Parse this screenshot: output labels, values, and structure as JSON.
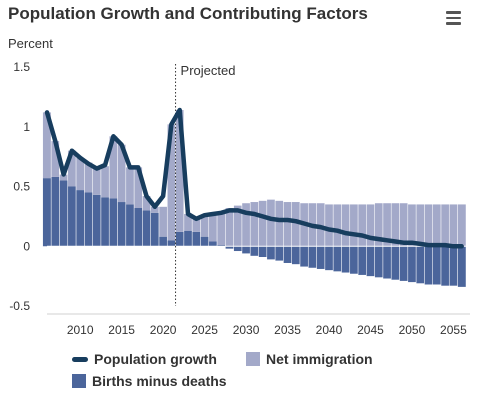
{
  "chart_data": {
    "type": "bar+line",
    "title": "Population Growth and Contributing Factors",
    "ylabel": "Percent",
    "ylim": [
      -0.5,
      1.5
    ],
    "yticks": [
      -0.5,
      0,
      0.5,
      1,
      1.5
    ],
    "ytick_labels": [
      "-0.5",
      "0",
      "0.5",
      "1",
      "1.5"
    ],
    "xlim": [
      2006,
      2057
    ],
    "xticks": [
      2010,
      2015,
      2020,
      2025,
      2030,
      2035,
      2040,
      2045,
      2050,
      2055
    ],
    "xtick_labels": [
      "2010",
      "2015",
      "2020",
      "2025",
      "2030",
      "2035",
      "2040",
      "2045",
      "2050",
      "2055"
    ],
    "projected_start": 2021.5,
    "projected_label": "Projected",
    "years": [
      2006,
      2007,
      2008,
      2009,
      2010,
      2011,
      2012,
      2013,
      2014,
      2015,
      2016,
      2017,
      2018,
      2019,
      2020,
      2021,
      2022,
      2023,
      2024,
      2025,
      2026,
      2027,
      2028,
      2029,
      2030,
      2031,
      2032,
      2033,
      2034,
      2035,
      2036,
      2037,
      2038,
      2039,
      2040,
      2041,
      2042,
      2043,
      2044,
      2045,
      2046,
      2047,
      2048,
      2049,
      2050,
      2051,
      2052,
      2053,
      2054,
      2055,
      2056
    ],
    "series": [
      {
        "name": "Births minus deaths",
        "color": "#4b659b",
        "values": [
          0.57,
          0.58,
          0.55,
          0.5,
          0.47,
          0.45,
          0.43,
          0.41,
          0.4,
          0.37,
          0.35,
          0.32,
          0.3,
          0.28,
          0.08,
          0.05,
          0.12,
          0.13,
          0.12,
          0.08,
          0.04,
          0.01,
          -0.02,
          -0.04,
          -0.06,
          -0.08,
          -0.09,
          -0.11,
          -0.12,
          -0.14,
          -0.15,
          -0.17,
          -0.18,
          -0.19,
          -0.2,
          -0.21,
          -0.22,
          -0.23,
          -0.24,
          -0.25,
          -0.26,
          -0.27,
          -0.28,
          -0.29,
          -0.3,
          -0.31,
          -0.32,
          -0.32,
          -0.33,
          -0.33,
          -0.34
        ]
      },
      {
        "name": "Net immigration",
        "color": "#a3a9c9",
        "values": [
          0.55,
          0.3,
          0.05,
          0.3,
          0.27,
          0.25,
          0.22,
          0.26,
          0.52,
          0.48,
          0.31,
          0.34,
          0.12,
          0.05,
          0.25,
          0.97,
          1.02,
          0.14,
          0.11,
          0.18,
          0.24,
          0.28,
          0.32,
          0.34,
          0.36,
          0.37,
          0.38,
          0.39,
          0.38,
          0.37,
          0.37,
          0.36,
          0.36,
          0.36,
          0.35,
          0.35,
          0.35,
          0.35,
          0.35,
          0.35,
          0.36,
          0.36,
          0.36,
          0.36,
          0.35,
          0.35,
          0.35,
          0.35,
          0.35,
          0.35,
          0.35
        ]
      },
      {
        "name": "Population growth",
        "color": "#173d5e",
        "values": [
          1.12,
          0.88,
          0.6,
          0.8,
          0.74,
          0.69,
          0.65,
          0.68,
          0.92,
          0.85,
          0.66,
          0.66,
          0.42,
          0.33,
          0.42,
          1.02,
          1.14,
          0.27,
          0.23,
          0.26,
          0.27,
          0.28,
          0.3,
          0.3,
          0.28,
          0.27,
          0.25,
          0.23,
          0.22,
          0.22,
          0.21,
          0.19,
          0.17,
          0.16,
          0.14,
          0.13,
          0.11,
          0.1,
          0.09,
          0.07,
          0.06,
          0.05,
          0.04,
          0.03,
          0.03,
          0.02,
          0.01,
          0.01,
          0.01,
          0.0,
          0.0
        ]
      }
    ]
  },
  "legend": [
    {
      "label": "Population growth",
      "kind": "line",
      "color": "#173d5e"
    },
    {
      "label": "Net immigration",
      "kind": "box",
      "color": "#a3a9c9"
    },
    {
      "label": "Births minus deaths",
      "kind": "box",
      "color": "#4b659b"
    }
  ],
  "menu_icon": "hamburger-menu-icon"
}
